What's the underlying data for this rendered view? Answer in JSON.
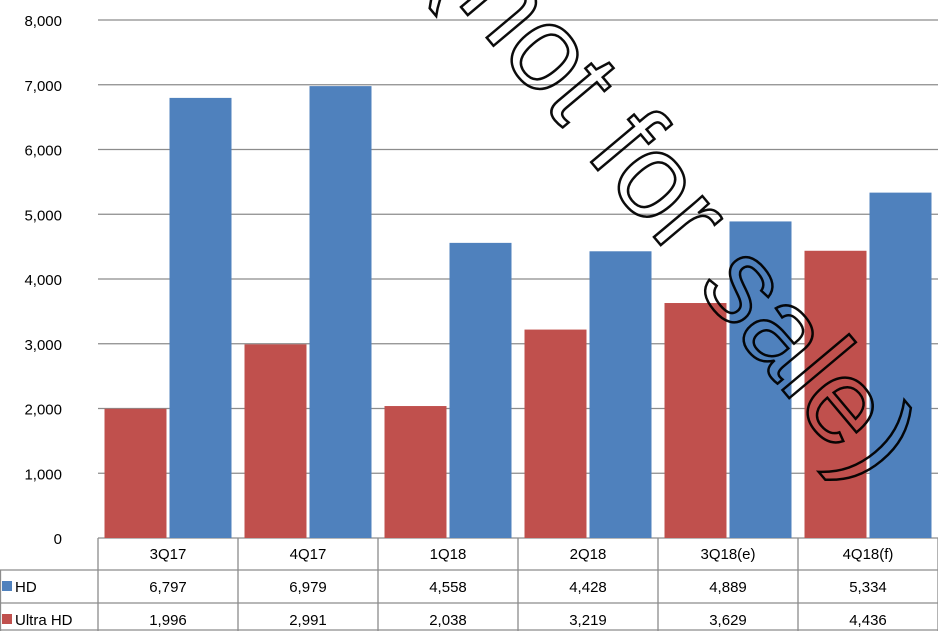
{
  "chart_data": {
    "type": "bar",
    "categories": [
      "3Q17",
      "4Q17",
      "1Q18",
      "2Q18",
      "3Q18(e)",
      "4Q18(f)"
    ],
    "series": [
      {
        "name": "Ultra HD",
        "color": "#c0504d",
        "values": [
          1996,
          2991,
          2038,
          3219,
          3629,
          4436
        ],
        "labels": [
          "1,996",
          "2,991",
          "2,038",
          "3,219",
          "3,629",
          "4,436"
        ]
      },
      {
        "name": "HD",
        "color": "#4f81bd",
        "values": [
          6797,
          6979,
          4558,
          4428,
          4889,
          5334
        ],
        "labels": [
          "6,797",
          "6,979",
          "4,558",
          "4,428",
          "4,889",
          "5,334"
        ]
      }
    ],
    "table_rows": [
      "HD",
      "Ultra HD"
    ],
    "ylim": [
      0,
      8000
    ],
    "yticks": [
      0,
      1000,
      2000,
      3000,
      4000,
      5000,
      6000,
      7000,
      8000
    ],
    "ytick_labels": [
      "0",
      "1,000",
      "2,000",
      "3,000",
      "4,000",
      "5,000",
      "6,000",
      "7,000",
      "8,000"
    ],
    "grid": true,
    "legend": "data-table",
    "watermark": "(not for sale)"
  }
}
